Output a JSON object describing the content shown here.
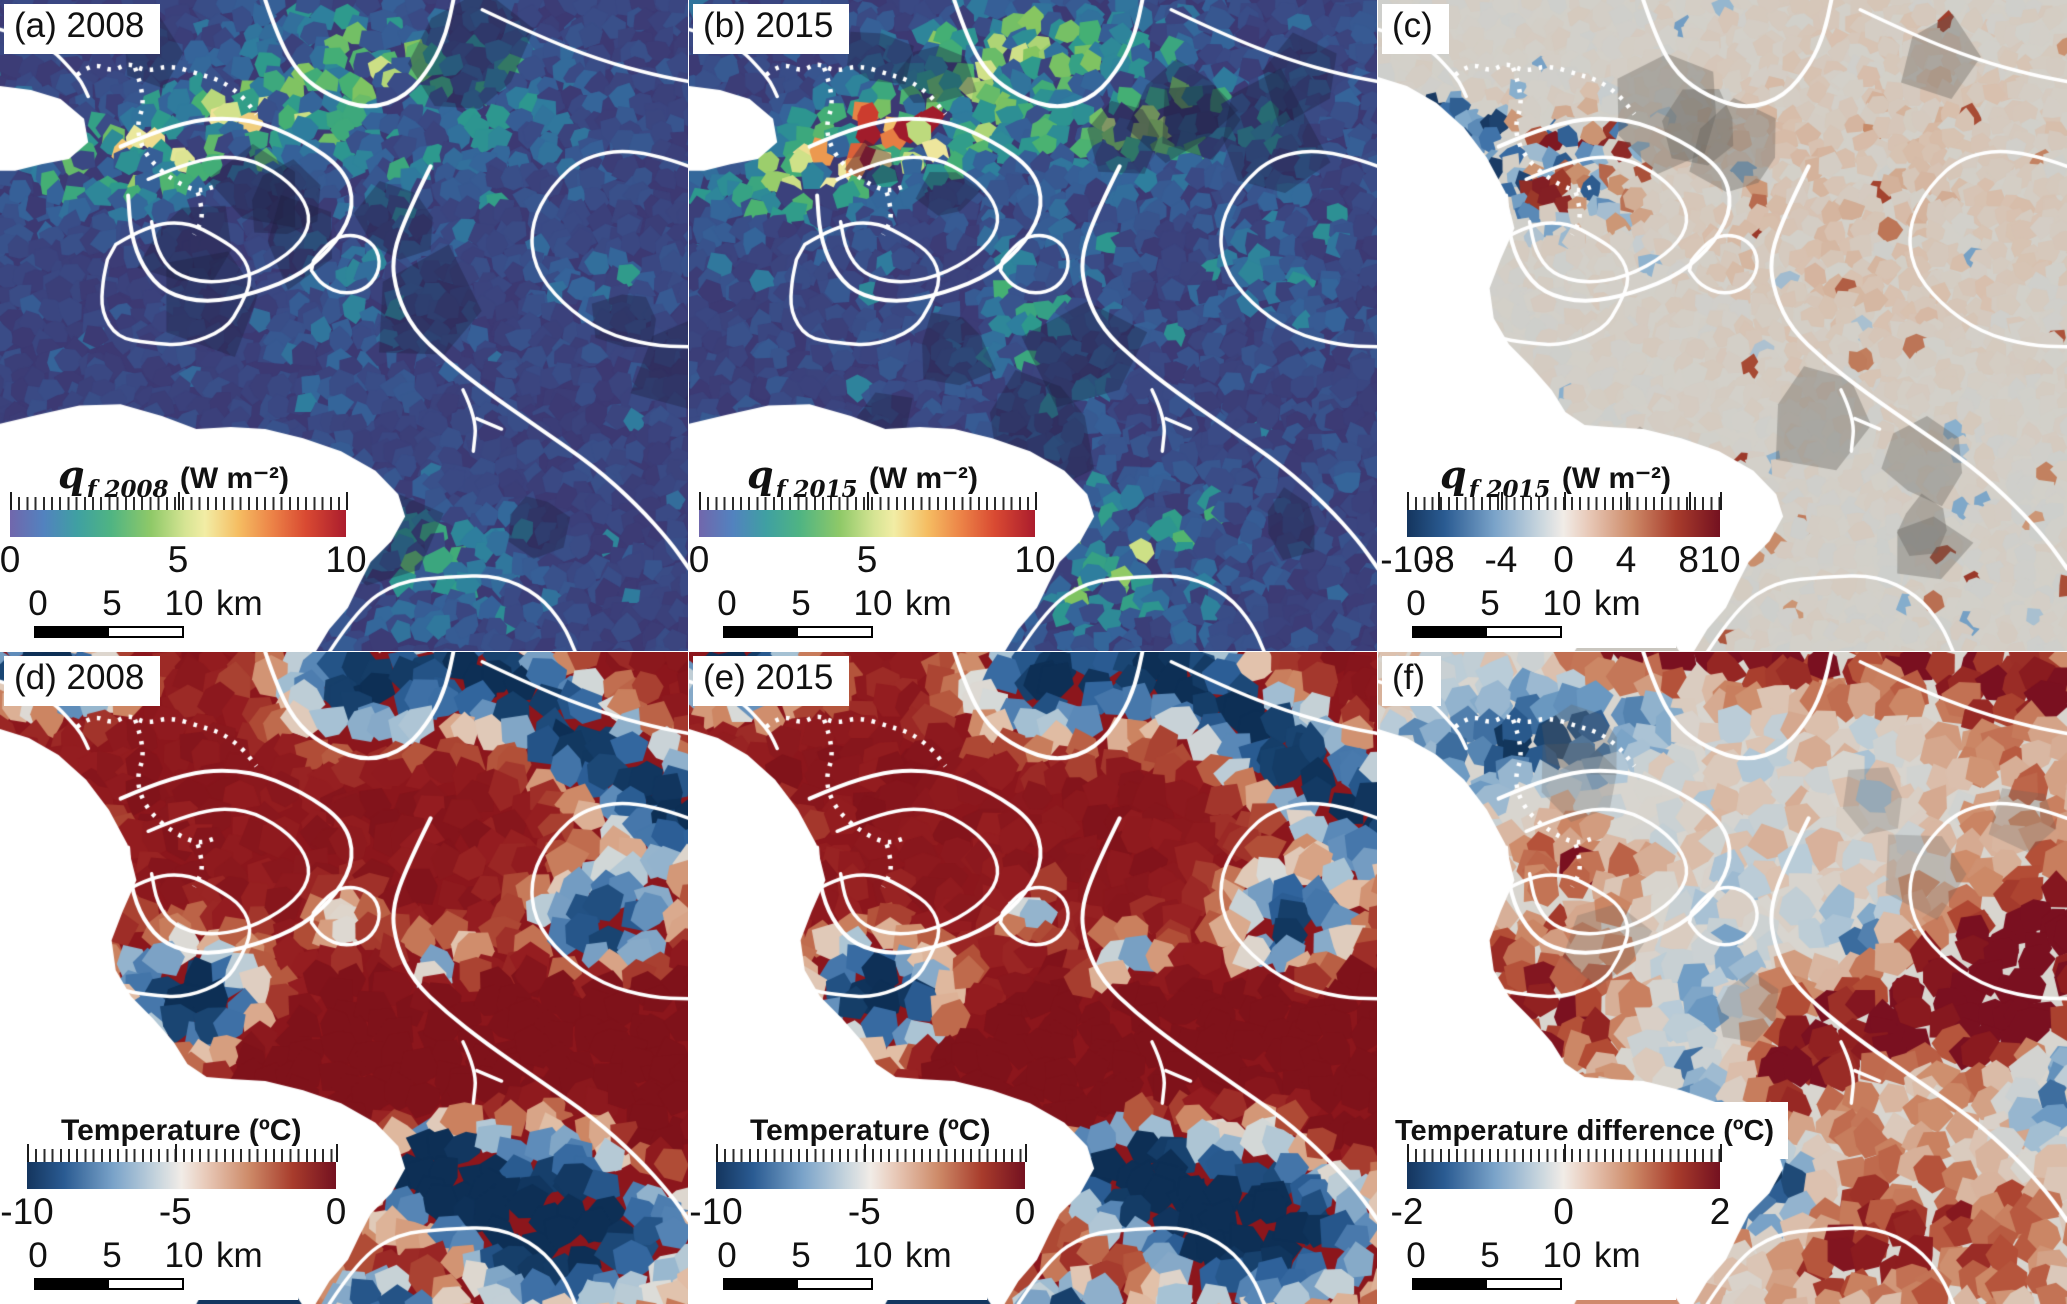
{
  "figure": {
    "description": "Six-panel map figure: modelled frictional heat flux (2008, 2015, difference) and basal temperature (2008, 2015, difference) over a glacier region with white coastlines, grounding-line contours and a dotted profile line.",
    "panels": [
      {
        "label": "(a) 2008",
        "colorbar": {
          "sym": "q",
          "sub": "f 2008",
          "units": " (W m⁻²)",
          "type": "flux",
          "ticks": [
            "0",
            "5",
            "10"
          ],
          "fracs": [
            0,
            0.5,
            1
          ]
        },
        "scalebar": {
          "labels": [
            "0",
            "5",
            "10"
          ],
          "unit": "km"
        }
      },
      {
        "label": "(b) 2015",
        "colorbar": {
          "sym": "q",
          "sub": "f 2015",
          "units": " (W m⁻²)",
          "type": "flux",
          "ticks": [
            "0",
            "5",
            "10"
          ],
          "fracs": [
            0,
            0.5,
            1
          ]
        },
        "scalebar": {
          "labels": [
            "0",
            "5",
            "10"
          ],
          "unit": "km"
        }
      },
      {
        "label": "(c)",
        "colorbar": {
          "sym": "q",
          "sub": "f 2015",
          "units": " (W m⁻²)",
          "type": "div",
          "ticks": [
            "-10",
            "-8",
            "-4",
            "0",
            "4",
            "8",
            "10"
          ],
          "fracs": [
            0,
            0.1,
            0.3,
            0.5,
            0.7,
            0.9,
            1
          ]
        },
        "scalebar": {
          "labels": [
            "0",
            "5",
            "10"
          ],
          "unit": "km"
        }
      },
      {
        "label": "(d) 2008",
        "colorbar": {
          "sym": "",
          "sub": "",
          "units": "Temperature (ºC)",
          "type": "div",
          "ticks": [
            "-10",
            "-5",
            "0"
          ],
          "fracs": [
            0,
            0.48,
            1
          ]
        },
        "scalebar": {
          "labels": [
            "0",
            "5",
            "10"
          ],
          "unit": "km"
        }
      },
      {
        "label": "(e) 2015",
        "colorbar": {
          "sym": "",
          "sub": "",
          "units": "Temperature (ºC)",
          "type": "div",
          "ticks": [
            "-10",
            "-5",
            "0"
          ],
          "fracs": [
            0,
            0.48,
            1
          ]
        },
        "scalebar": {
          "labels": [
            "0",
            "5",
            "10"
          ],
          "unit": "km"
        }
      },
      {
        "label": "(f)",
        "colorbar": {
          "sym": "",
          "sub": "",
          "units": "Temperature difference (ºC)",
          "type": "div",
          "ticks": [
            "-2",
            "0",
            "2"
          ],
          "fracs": [
            0,
            0.5,
            1
          ]
        },
        "scalebar": {
          "labels": [
            "0",
            "5",
            "10"
          ],
          "unit": "km"
        }
      }
    ]
  },
  "colors": {
    "flux_scale": [
      [
        0,
        "#7167ac"
      ],
      [
        0.1,
        "#5282bf"
      ],
      [
        0.2,
        "#3fa0a2"
      ],
      [
        0.3,
        "#4fb483"
      ],
      [
        0.42,
        "#8fc968"
      ],
      [
        0.52,
        "#d5e493"
      ],
      [
        0.58,
        "#f2eda5"
      ],
      [
        0.68,
        "#f5bd62"
      ],
      [
        0.78,
        "#ec8347"
      ],
      [
        0.88,
        "#d94a32"
      ],
      [
        1,
        "#ab1c2d"
      ]
    ],
    "div_scale": [
      [
        0,
        "#14355e"
      ],
      [
        0.12,
        "#2a5b92"
      ],
      [
        0.28,
        "#7aa3c9"
      ],
      [
        0.42,
        "#c6d4dd"
      ],
      [
        0.5,
        "#f1ece7"
      ],
      [
        0.58,
        "#e8c9b8"
      ],
      [
        0.72,
        "#cd8a68"
      ],
      [
        0.86,
        "#a83c2c"
      ],
      [
        1,
        "#741120"
      ]
    ],
    "coast_white": "#ffffff",
    "contour_white": "#ffffff"
  },
  "chart_data": [
    {
      "type": "heatmap",
      "panel": "a",
      "title": "q f 2008 (W m⁻²)",
      "year": 2008,
      "colormap": "rainbow",
      "range": [
        0,
        10
      ],
      "colorbar_ticks": [
        0,
        5,
        10
      ],
      "scalebar_km": [
        0,
        5,
        10
      ],
      "legend_position": "bottom-left"
    },
    {
      "type": "heatmap",
      "panel": "b",
      "title": "q f 2015 (W m⁻²)",
      "year": 2015,
      "colormap": "rainbow",
      "range": [
        0,
        10
      ],
      "colorbar_ticks": [
        0,
        5,
        10
      ],
      "scalebar_km": [
        0,
        5,
        10
      ],
      "legend_position": "bottom-left"
    },
    {
      "type": "heatmap",
      "panel": "c",
      "title": "q f 2015 (W m⁻²)",
      "colormap": "blue-white-red diverging",
      "range": [
        -10,
        10
      ],
      "colorbar_ticks": [
        -10,
        -8,
        -4,
        0,
        4,
        8,
        10
      ],
      "scalebar_km": [
        0,
        5,
        10
      ],
      "legend_position": "bottom-left"
    },
    {
      "type": "heatmap",
      "panel": "d",
      "title": "Temperature (ºC)",
      "year": 2008,
      "colormap": "blue-white-red diverging",
      "range": [
        -10,
        0
      ],
      "colorbar_ticks": [
        -10,
        -5,
        0
      ],
      "scalebar_km": [
        0,
        5,
        10
      ],
      "legend_position": "bottom-left"
    },
    {
      "type": "heatmap",
      "panel": "e",
      "title": "Temperature (ºC)",
      "year": 2015,
      "colormap": "blue-white-red diverging",
      "range": [
        -10,
        0
      ],
      "colorbar_ticks": [
        -10,
        -5,
        0
      ],
      "scalebar_km": [
        0,
        5,
        10
      ],
      "legend_position": "bottom-left"
    },
    {
      "type": "heatmap",
      "panel": "f",
      "title": "Temperature difference (ºC)",
      "colormap": "blue-white-red diverging",
      "range": [
        -2,
        2
      ],
      "colorbar_ticks": [
        -2,
        0,
        2
      ],
      "scalebar_km": [
        0,
        5,
        10
      ],
      "legend_position": "bottom-left"
    }
  ]
}
